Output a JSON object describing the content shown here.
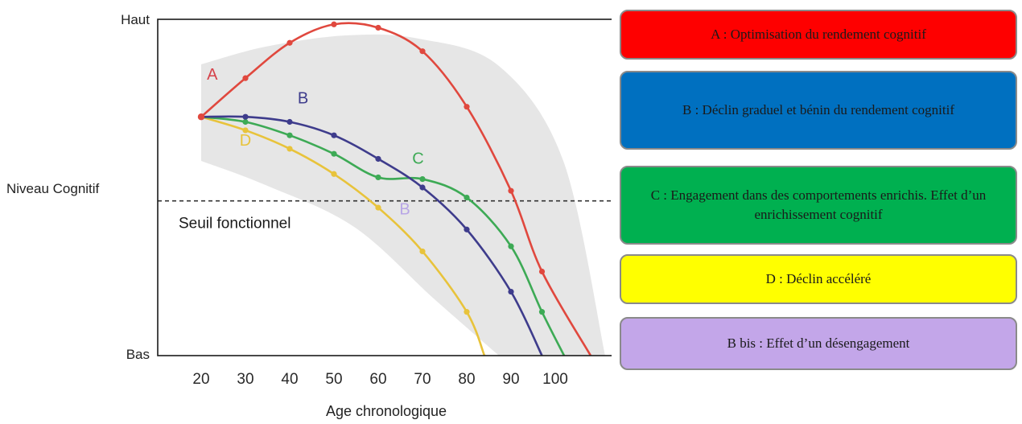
{
  "chart_data": {
    "type": "line",
    "xlabel": "Age chronologique",
    "ylabel": "Niveau Cognitif",
    "y_top_label": "Haut",
    "y_bottom_label": "Bas",
    "x_ticks": [
      "20",
      "30",
      "40",
      "50",
      "60",
      "70",
      "80",
      "90",
      "100"
    ],
    "xlim": [
      10,
      110
    ],
    "ylim": [
      0,
      100
    ],
    "threshold": {
      "label": "Seuil fonctionnel",
      "value": 46
    },
    "series": [
      {
        "name": "A",
        "color": "#e0483e",
        "x": [
          20,
          30,
          40,
          50,
          60,
          70,
          80,
          90,
          97,
          108
        ],
        "values": [
          71,
          82.5,
          93,
          98.5,
          97.5,
          90.5,
          74,
          49,
          25,
          0
        ],
        "markers": [
          30,
          40,
          50,
          60,
          70,
          80,
          90,
          97
        ]
      },
      {
        "name": "B",
        "color": "#3e3c8c",
        "x": [
          20,
          30,
          40,
          50,
          60,
          70,
          80,
          90,
          97
        ],
        "values": [
          71,
          71,
          69.5,
          65.5,
          58.5,
          50,
          37.5,
          19,
          0
        ],
        "markers": [
          30,
          40,
          50,
          60,
          70,
          80,
          90
        ]
      },
      {
        "name": "C",
        "color": "#3daa55",
        "x": [
          20,
          30,
          40,
          50,
          60,
          70,
          80,
          90,
          97,
          102
        ],
        "values": [
          71,
          69.5,
          65.5,
          60,
          53,
          52.5,
          47,
          32.5,
          13,
          0
        ],
        "markers": [
          30,
          40,
          50,
          60,
          70,
          80,
          90,
          97
        ]
      },
      {
        "name": "D",
        "color": "#e8c33b",
        "x": [
          20,
          30,
          40,
          50,
          60,
          70,
          80,
          84
        ],
        "values": [
          71,
          67,
          61.5,
          54,
          44,
          31,
          13,
          0
        ],
        "markers": [
          30,
          40,
          50,
          60,
          70,
          80
        ]
      }
    ],
    "annotations": [
      {
        "text": "A",
        "x": 22.5,
        "y": 82,
        "color": "#d6424a"
      },
      {
        "text": "B",
        "x": 43,
        "y": 75,
        "color": "#3e3c8c"
      },
      {
        "text": "C",
        "x": 69,
        "y": 57,
        "color": "#3daa55"
      },
      {
        "text": "D",
        "x": 30,
        "y": 62.5,
        "color": "#e8c33b"
      },
      {
        "text": "B",
        "x": 66,
        "y": 42,
        "color": "#b8a6e6"
      }
    ]
  },
  "legend": [
    {
      "text": "A : Optimisation du rendement cognitif",
      "color": "#fe0000"
    },
    {
      "text": "B : Déclin graduel et bénin du rendement cognitif",
      "color": "#0070c0"
    },
    {
      "text": "C : Engagement dans des comportements enrichis. Effet d’un enrichissement cognitif",
      "color": "#00b050"
    },
    {
      "text": "D : Déclin accéléré",
      "color": "#ffff00"
    },
    {
      "text": "B bis : Effet d’un désengagement",
      "color": "#c3a6e9"
    }
  ]
}
